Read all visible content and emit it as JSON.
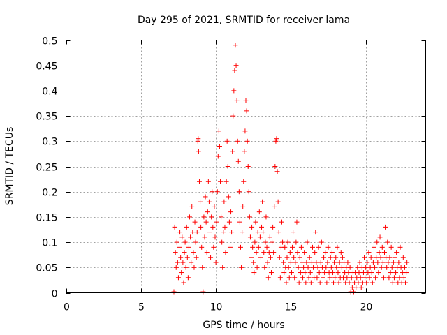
{
  "chart_data": {
    "type": "scatter",
    "title": "Day 295 of 2021, SRMTID for receiver lama",
    "xlabel": "GPS time / hours",
    "ylabel": "SRMTID / TECUs",
    "xlim": [
      0,
      24
    ],
    "ylim": [
      0,
      0.5
    ],
    "x_ticks": [
      0,
      5,
      10,
      15,
      20
    ],
    "x_tick_labels": [
      "0",
      "5",
      "10",
      "15",
      "20"
    ],
    "y_ticks": [
      0,
      0.05,
      0.1,
      0.15,
      0.2,
      0.25,
      0.3,
      0.35,
      0.4,
      0.45,
      0.5
    ],
    "y_tick_labels": [
      "0",
      "0.05",
      "0.1",
      "0.15",
      "0.2",
      "0.25",
      "0.3",
      "0.35",
      "0.4",
      "0.45",
      "0.5"
    ],
    "grid": true,
    "marker": "+",
    "color": "#ff0000",
    "series": [
      {
        "name": "SRMTID",
        "points": [
          [
            7.2,
            0.002
          ],
          [
            7.25,
            0.13
          ],
          [
            7.3,
            0.08
          ],
          [
            7.35,
            0.05
          ],
          [
            7.4,
            0.1
          ],
          [
            7.45,
            0.06
          ],
          [
            7.5,
            0.03
          ],
          [
            7.55,
            0.09
          ],
          [
            7.6,
            0.12
          ],
          [
            7.65,
            0.07
          ],
          [
            7.7,
            0.04
          ],
          [
            7.75,
            0.11
          ],
          [
            7.8,
            0.06
          ],
          [
            7.85,
            0.02
          ],
          [
            7.9,
            0.08
          ],
          [
            7.95,
            0.1
          ],
          [
            8.0,
            0.05
          ],
          [
            8.05,
            0.13
          ],
          [
            8.1,
            0.07
          ],
          [
            8.15,
            0.03
          ],
          [
            8.2,
            0.09
          ],
          [
            8.25,
            0.15
          ],
          [
            8.3,
            0.11
          ],
          [
            8.35,
            0.06
          ],
          [
            8.4,
            0.17
          ],
          [
            8.45,
            0.12
          ],
          [
            8.5,
            0.08
          ],
          [
            8.55,
            0.05
          ],
          [
            8.6,
            0.14
          ],
          [
            8.65,
            0.1
          ],
          [
            8.7,
            0.07
          ],
          [
            8.75,
            0.12
          ],
          [
            8.8,
            0.3
          ],
          [
            8.82,
            0.305
          ],
          [
            8.85,
            0.28
          ],
          [
            8.9,
            0.22
          ],
          [
            8.95,
            0.18
          ],
          [
            9.0,
            0.13
          ],
          [
            9.05,
            0.09
          ],
          [
            9.1,
            0.05
          ],
          [
            9.15,
            0.002
          ],
          [
            9.2,
            0.15
          ],
          [
            9.25,
            0.11
          ],
          [
            9.3,
            0.19
          ],
          [
            9.35,
            0.14
          ],
          [
            9.4,
            0.08
          ],
          [
            9.45,
            0.16
          ],
          [
            9.5,
            0.22
          ],
          [
            9.55,
            0.18
          ],
          [
            9.6,
            0.12
          ],
          [
            9.65,
            0.07
          ],
          [
            9.7,
            0.15
          ],
          [
            9.75,
            0.2
          ],
          [
            9.8,
            0.13
          ],
          [
            9.85,
            0.09
          ],
          [
            9.9,
            0.17
          ],
          [
            9.95,
            0.11
          ],
          [
            10.0,
            0.06
          ],
          [
            10.05,
            0.14
          ],
          [
            10.1,
            0.2
          ],
          [
            10.15,
            0.27
          ],
          [
            10.2,
            0.32
          ],
          [
            10.25,
            0.29
          ],
          [
            10.3,
            0.22
          ],
          [
            10.35,
            0.15
          ],
          [
            10.4,
            0.1
          ],
          [
            10.45,
            0.05
          ],
          [
            10.5,
            0.12
          ],
          [
            10.55,
            0.18
          ],
          [
            10.6,
            0.13
          ],
          [
            10.65,
            0.08
          ],
          [
            10.7,
            0.22
          ],
          [
            10.75,
            0.3
          ],
          [
            10.8,
            0.25
          ],
          [
            10.85,
            0.19
          ],
          [
            10.9,
            0.14
          ],
          [
            10.95,
            0.09
          ],
          [
            11.0,
            0.16
          ],
          [
            11.05,
            0.12
          ],
          [
            11.1,
            0.28
          ],
          [
            11.15,
            0.35
          ],
          [
            11.2,
            0.4
          ],
          [
            11.25,
            0.44
          ],
          [
            11.3,
            0.49
          ],
          [
            11.35,
            0.45
          ],
          [
            11.4,
            0.38
          ],
          [
            11.45,
            0.3
          ],
          [
            11.5,
            0.26
          ],
          [
            11.55,
            0.2
          ],
          [
            11.6,
            0.14
          ],
          [
            11.65,
            0.09
          ],
          [
            11.7,
            0.05
          ],
          [
            11.75,
            0.12
          ],
          [
            11.8,
            0.17
          ],
          [
            11.85,
            0.22
          ],
          [
            11.9,
            0.28
          ],
          [
            11.95,
            0.32
          ],
          [
            12.0,
            0.38
          ],
          [
            12.05,
            0.36
          ],
          [
            12.1,
            0.3
          ],
          [
            12.15,
            0.25
          ],
          [
            12.2,
            0.2
          ],
          [
            12.25,
            0.15
          ],
          [
            12.3,
            0.11
          ],
          [
            12.35,
            0.07
          ],
          [
            12.4,
            0.13
          ],
          [
            12.45,
            0.09
          ],
          [
            12.5,
            0.06
          ],
          [
            12.55,
            0.04
          ],
          [
            12.6,
            0.1
          ],
          [
            12.65,
            0.14
          ],
          [
            12.7,
            0.08
          ],
          [
            12.75,
            0.05
          ],
          [
            12.8,
            0.12
          ],
          [
            12.85,
            0.09
          ],
          [
            12.9,
            0.16
          ],
          [
            12.95,
            0.11
          ],
          [
            13.0,
            0.07
          ],
          [
            13.05,
            0.13
          ],
          [
            13.1,
            0.18
          ],
          [
            13.15,
            0.12
          ],
          [
            13.2,
            0.08
          ],
          [
            13.25,
            0.05
          ],
          [
            13.3,
            0.1
          ],
          [
            13.35,
            0.15
          ],
          [
            13.4,
            0.09
          ],
          [
            13.45,
            0.06
          ],
          [
            13.5,
            0.03
          ],
          [
            13.55,
            0.08
          ],
          [
            13.6,
            0.11
          ],
          [
            13.65,
            0.07
          ],
          [
            13.7,
            0.04
          ],
          [
            13.75,
            0.1
          ],
          [
            13.8,
            0.13
          ],
          [
            13.85,
            0.08
          ],
          [
            13.9,
            0.17
          ],
          [
            13.95,
            0.25
          ],
          [
            14.0,
            0.3
          ],
          [
            14.05,
            0.305
          ],
          [
            14.1,
            0.24
          ],
          [
            14.15,
            0.18
          ],
          [
            14.2,
            0.12
          ],
          [
            14.25,
            0.07
          ],
          [
            14.3,
            0.03
          ],
          [
            14.35,
            0.09
          ],
          [
            14.4,
            0.14
          ],
          [
            14.45,
            0.1
          ],
          [
            14.5,
            0.06
          ],
          [
            14.55,
            0.04
          ],
          [
            14.6,
            0.09
          ],
          [
            14.65,
            0.05
          ],
          [
            14.7,
            0.02
          ],
          [
            14.75,
            0.07
          ],
          [
            14.8,
            0.1
          ],
          [
            14.85,
            0.05
          ],
          [
            14.9,
            0.03
          ],
          [
            14.95,
            0.08
          ],
          [
            15.0,
            0.06
          ],
          [
            15.05,
            0.04
          ],
          [
            15.1,
            0.09
          ],
          [
            15.15,
            0.12
          ],
          [
            15.2,
            0.07
          ],
          [
            15.25,
            0.03
          ],
          [
            15.3,
            0.06
          ],
          [
            15.35,
            0.1
          ],
          [
            15.4,
            0.14
          ],
          [
            15.45,
            0.08
          ],
          [
            15.5,
            0.05
          ],
          [
            15.55,
            0.02
          ],
          [
            15.6,
            0.07
          ],
          [
            15.65,
            0.04
          ],
          [
            15.7,
            0.09
          ],
          [
            15.75,
            0.06
          ],
          [
            15.8,
            0.03
          ],
          [
            15.85,
            0.05
          ],
          [
            15.9,
            0.08
          ],
          [
            15.95,
            0.04
          ],
          [
            16.0,
            0.02
          ],
          [
            16.05,
            0.06
          ],
          [
            16.1,
            0.1
          ],
          [
            16.15,
            0.05
          ],
          [
            16.2,
            0.03
          ],
          [
            16.25,
            0.07
          ],
          [
            16.3,
            0.04
          ],
          [
            16.35,
            0.02
          ],
          [
            16.4,
            0.06
          ],
          [
            16.45,
            0.09
          ],
          [
            16.5,
            0.05
          ],
          [
            16.55,
            0.03
          ],
          [
            16.6,
            0.08
          ],
          [
            16.65,
            0.12
          ],
          [
            16.7,
            0.06
          ],
          [
            16.75,
            0.03
          ],
          [
            16.8,
            0.05
          ],
          [
            16.85,
            0.09
          ],
          [
            16.9,
            0.04
          ],
          [
            16.95,
            0.02
          ],
          [
            17.0,
            0.06
          ],
          [
            17.05,
            0.1
          ],
          [
            17.1,
            0.05
          ],
          [
            17.15,
            0.03
          ],
          [
            17.2,
            0.07
          ],
          [
            17.25,
            0.04
          ],
          [
            17.3,
            0.08
          ],
          [
            17.35,
            0.05
          ],
          [
            17.4,
            0.02
          ],
          [
            17.45,
            0.06
          ],
          [
            17.5,
            0.09
          ],
          [
            17.55,
            0.04
          ],
          [
            17.6,
            0.03
          ],
          [
            17.65,
            0.07
          ],
          [
            17.7,
            0.05
          ],
          [
            17.75,
            0.08
          ],
          [
            17.8,
            0.04
          ],
          [
            17.85,
            0.02
          ],
          [
            17.9,
            0.06
          ],
          [
            17.95,
            0.03
          ],
          [
            18.0,
            0.07
          ],
          [
            18.05,
            0.05
          ],
          [
            18.1,
            0.09
          ],
          [
            18.15,
            0.04
          ],
          [
            18.2,
            0.02
          ],
          [
            18.25,
            0.06
          ],
          [
            18.3,
            0.03
          ],
          [
            18.35,
            0.08
          ],
          [
            18.4,
            0.05
          ],
          [
            18.45,
            0.07
          ],
          [
            18.5,
            0.03
          ],
          [
            18.55,
            0.06
          ],
          [
            18.6,
            0.04
          ],
          [
            18.65,
            0.02
          ],
          [
            18.7,
            0.05
          ],
          [
            18.75,
            0.03
          ],
          [
            18.8,
            0.06
          ],
          [
            18.85,
            0.04
          ],
          [
            18.9,
            0.02
          ],
          [
            18.95,
            0.05
          ],
          [
            19.0,
            0.002
          ],
          [
            19.05,
            0.03
          ],
          [
            19.1,
            0.01
          ],
          [
            19.15,
            0.04
          ],
          [
            19.2,
            0.002
          ],
          [
            19.25,
            0.02
          ],
          [
            19.3,
            0.04
          ],
          [
            19.35,
            0.01
          ],
          [
            19.4,
            0.03
          ],
          [
            19.45,
            0.05
          ],
          [
            19.5,
            0.02
          ],
          [
            19.55,
            0.04
          ],
          [
            19.6,
            0.06
          ],
          [
            19.65,
            0.03
          ],
          [
            19.7,
            0.01
          ],
          [
            19.75,
            0.05
          ],
          [
            19.8,
            0.02
          ],
          [
            19.85,
            0.04
          ],
          [
            19.9,
            0.07
          ],
          [
            19.95,
            0.03
          ],
          [
            20.0,
            0.05
          ],
          [
            20.05,
            0.02
          ],
          [
            20.1,
            0.06
          ],
          [
            20.15,
            0.04
          ],
          [
            20.2,
            0.08
          ],
          [
            20.25,
            0.03
          ],
          [
            20.3,
            0.05
          ],
          [
            20.35,
            0.07
          ],
          [
            20.4,
            0.04
          ],
          [
            20.45,
            0.02
          ],
          [
            20.5,
            0.06
          ],
          [
            20.55,
            0.09
          ],
          [
            20.6,
            0.05
          ],
          [
            20.65,
            0.03
          ],
          [
            20.7,
            0.07
          ],
          [
            20.75,
            0.1
          ],
          [
            20.8,
            0.06
          ],
          [
            20.85,
            0.04
          ],
          [
            20.9,
            0.08
          ],
          [
            20.95,
            0.11
          ],
          [
            21.0,
            0.07
          ],
          [
            21.05,
            0.05
          ],
          [
            21.1,
            0.09
          ],
          [
            21.15,
            0.06
          ],
          [
            21.2,
            0.03
          ],
          [
            21.25,
            0.08
          ],
          [
            21.3,
            0.13
          ],
          [
            21.35,
            0.07
          ],
          [
            21.4,
            0.05
          ],
          [
            21.45,
            0.1
          ],
          [
            21.5,
            0.06
          ],
          [
            21.55,
            0.03
          ],
          [
            21.6,
            0.07
          ],
          [
            21.65,
            0.04
          ],
          [
            21.7,
            0.09
          ],
          [
            21.75,
            0.05
          ],
          [
            21.8,
            0.02
          ],
          [
            21.85,
            0.06
          ],
          [
            21.9,
            0.03
          ],
          [
            21.95,
            0.07
          ],
          [
            22.0,
            0.04
          ],
          [
            22.05,
            0.08
          ],
          [
            22.1,
            0.05
          ],
          [
            22.15,
            0.02
          ],
          [
            22.2,
            0.06
          ],
          [
            22.25,
            0.03
          ],
          [
            22.3,
            0.09
          ],
          [
            22.35,
            0.05
          ],
          [
            22.4,
            0.02
          ],
          [
            22.45,
            0.04
          ],
          [
            22.5,
            0.07
          ],
          [
            22.55,
            0.03
          ],
          [
            22.6,
            0.05
          ],
          [
            22.65,
            0.02
          ],
          [
            22.7,
            0.04
          ],
          [
            22.75,
            0.06
          ]
        ]
      }
    ]
  }
}
